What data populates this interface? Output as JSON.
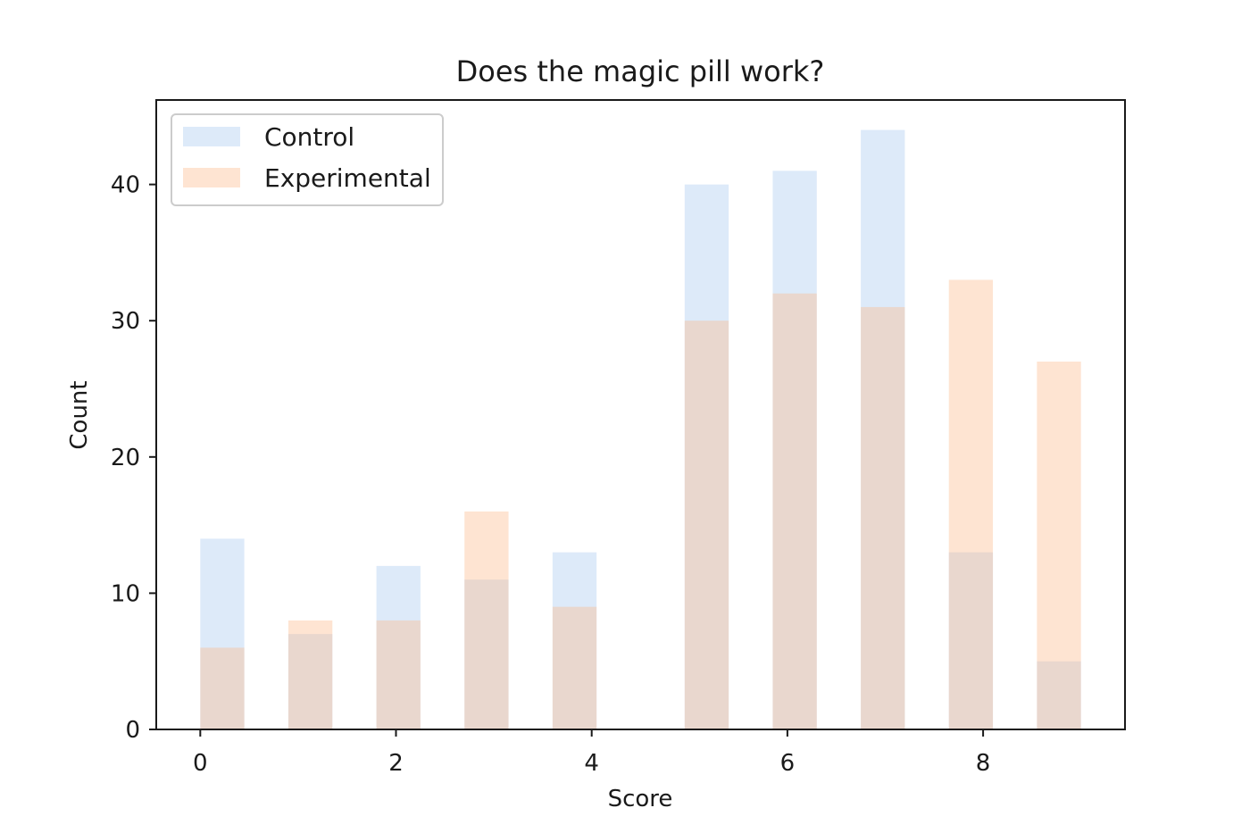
{
  "chart_data": {
    "type": "bar",
    "title": "Does the magic pill work?",
    "xlabel": "Score",
    "ylabel": "Count",
    "xlim": [
      -0.45,
      9.45
    ],
    "ylim": [
      0,
      46.2
    ],
    "xticks": [
      0,
      2,
      4,
      6,
      8
    ],
    "yticks": [
      0,
      10,
      20,
      30,
      40
    ],
    "bin_width": 0.45,
    "legend_position": "top-left",
    "grid": false,
    "series": [
      {
        "name": "Control",
        "color": "#a6c8ee",
        "opacity": 0.38,
        "bars": [
          {
            "left": 0.0,
            "value": 14
          },
          {
            "left": 0.9,
            "value": 7
          },
          {
            "left": 1.8,
            "value": 12
          },
          {
            "left": 2.7,
            "value": 11
          },
          {
            "left": 3.6,
            "value": 13
          },
          {
            "left": 4.95,
            "value": 40
          },
          {
            "left": 5.85,
            "value": 41
          },
          {
            "left": 6.75,
            "value": 44
          },
          {
            "left": 7.65,
            "value": 13
          },
          {
            "left": 8.55,
            "value": 5
          }
        ]
      },
      {
        "name": "Experimental",
        "color": "#fdb98a",
        "opacity": 0.38,
        "bars": [
          {
            "left": 0.0,
            "value": 6
          },
          {
            "left": 0.9,
            "value": 8
          },
          {
            "left": 1.8,
            "value": 8
          },
          {
            "left": 2.7,
            "value": 16
          },
          {
            "left": 3.6,
            "value": 9
          },
          {
            "left": 4.95,
            "value": 30
          },
          {
            "left": 5.85,
            "value": 32
          },
          {
            "left": 6.75,
            "value": 31
          },
          {
            "left": 7.65,
            "value": 33
          },
          {
            "left": 8.55,
            "value": 27
          }
        ]
      }
    ]
  }
}
